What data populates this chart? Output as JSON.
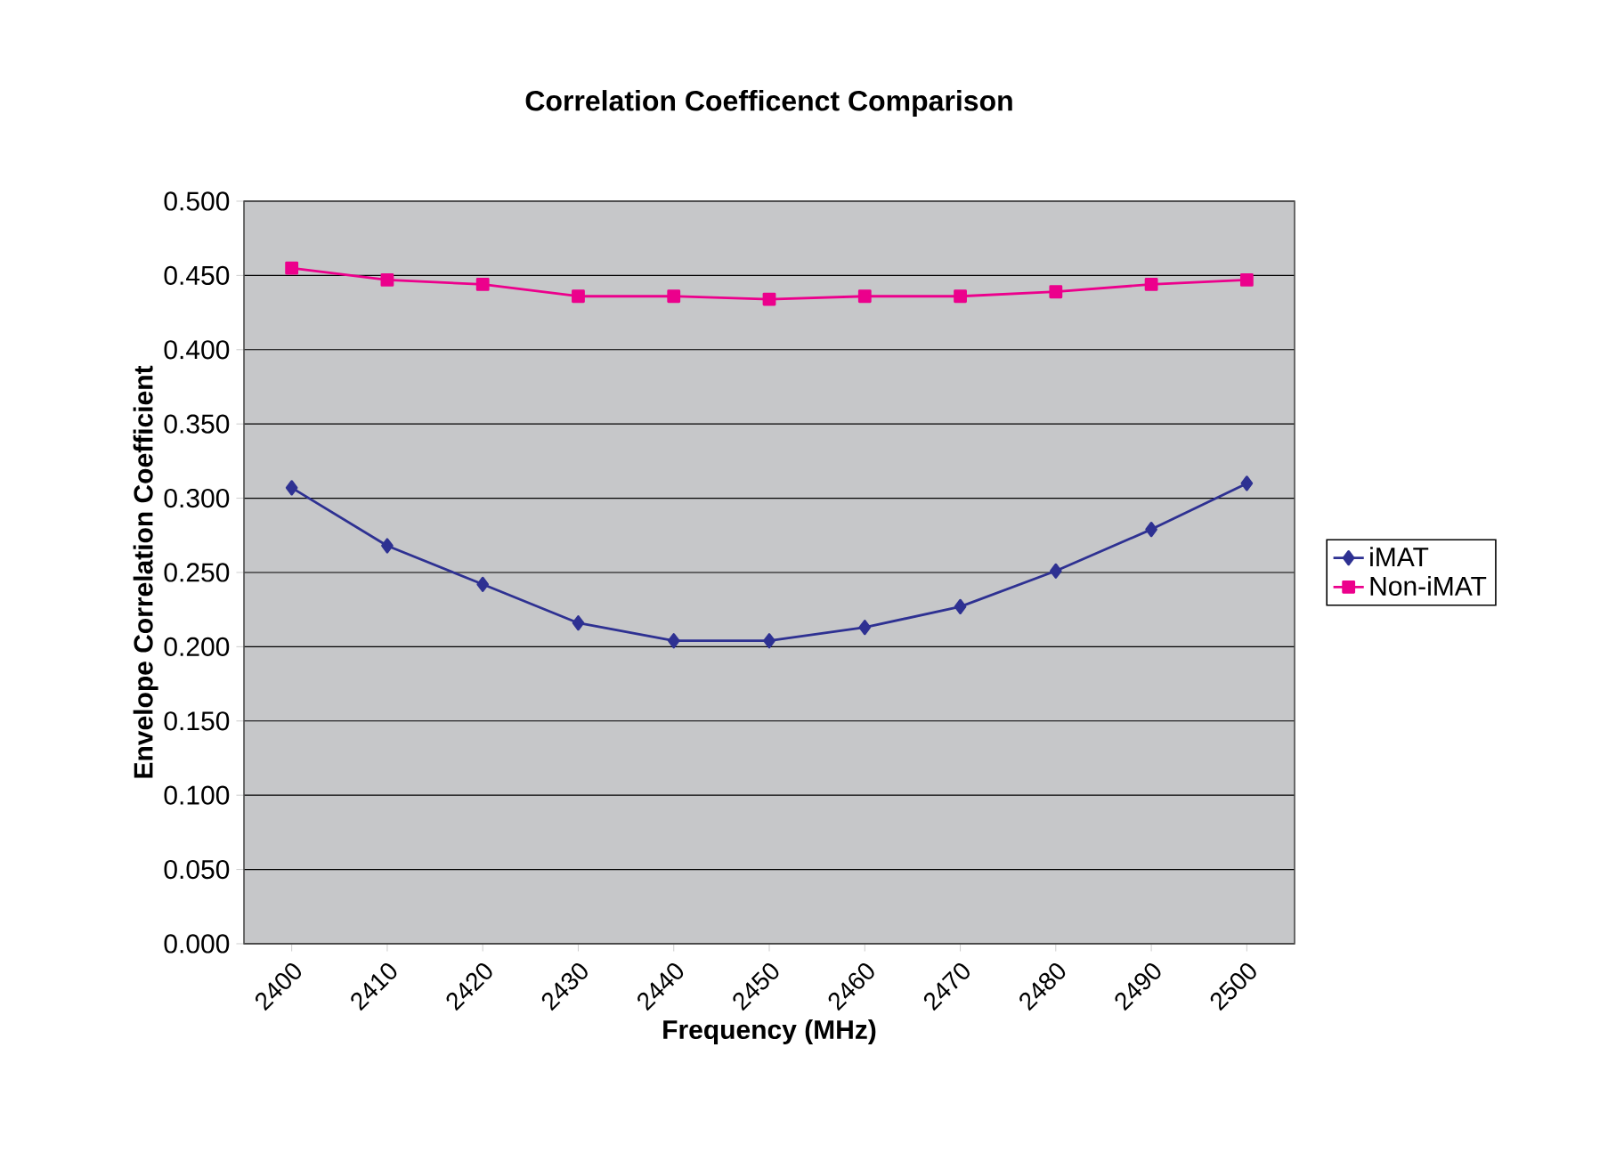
{
  "chart_data": {
    "type": "line",
    "title": "Correlation Coefficenct Comparison",
    "xlabel": "Frequency (MHz)",
    "ylabel": "Envelope Correlation Coefficient",
    "categories": [
      "2400",
      "2410",
      "2420",
      "2430",
      "2440",
      "2450",
      "2460",
      "2470",
      "2480",
      "2490",
      "2500"
    ],
    "series": [
      {
        "name": "iMAT",
        "color": "#2e3192",
        "marker": "diamond",
        "values": [
          0.307,
          0.268,
          0.242,
          0.216,
          0.204,
          0.204,
          0.213,
          0.227,
          0.251,
          0.279,
          0.31
        ]
      },
      {
        "name": "Non-iMAT",
        "color": "#ec008c",
        "marker": "square",
        "values": [
          0.455,
          0.447,
          0.444,
          0.436,
          0.436,
          0.434,
          0.436,
          0.436,
          0.439,
          0.444,
          0.447
        ]
      }
    ],
    "ylim": [
      0,
      0.5
    ],
    "yticks": [
      {
        "value": 0,
        "label": "0.000"
      },
      {
        "value": 0.05,
        "label": "0.050"
      },
      {
        "value": 0.1,
        "label": "0.100"
      },
      {
        "value": 0.15,
        "label": "0.150"
      },
      {
        "value": 0.2,
        "label": "0.200"
      },
      {
        "value": 0.25,
        "label": "0.250"
      },
      {
        "value": 0.3,
        "label": "0.300"
      },
      {
        "value": 0.35,
        "label": "0.350"
      },
      {
        "value": 0.4,
        "label": "0.400"
      },
      {
        "value": 0.45,
        "label": "0.450"
      },
      {
        "value": 0.5,
        "label": "0.500"
      }
    ],
    "grid": "y",
    "legend": "right",
    "line_style": "solid"
  }
}
